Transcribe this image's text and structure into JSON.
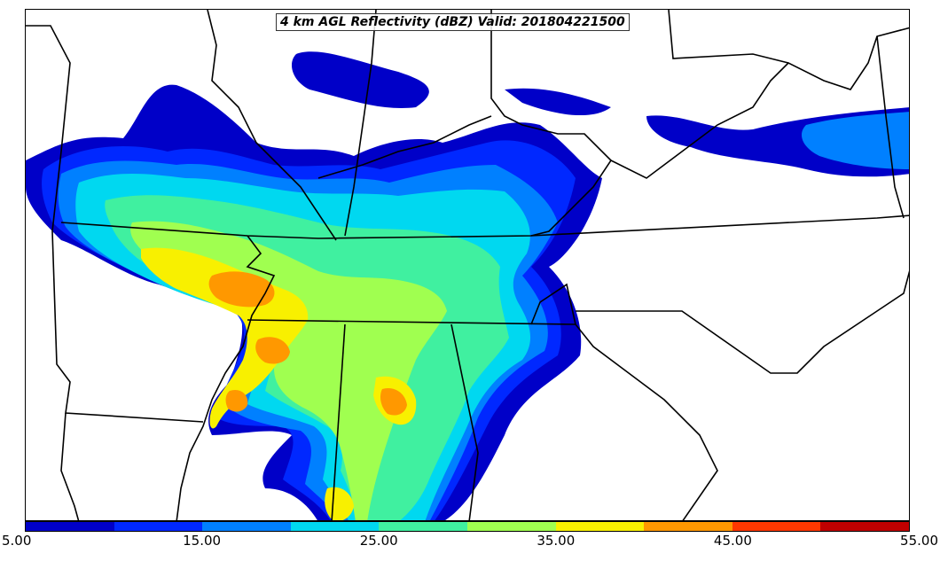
{
  "map": {
    "title": "4 km AGL Reflectivity (dBZ) Valid: 201804221500"
  },
  "colorbar": {
    "bins": [
      {
        "min": 5,
        "max": 10,
        "color": "#0000c8"
      },
      {
        "min": 10,
        "max": 15,
        "color": "#0028ff"
      },
      {
        "min": 15,
        "max": 20,
        "color": "#0080ff"
      },
      {
        "min": 20,
        "max": 25,
        "color": "#00d8f0"
      },
      {
        "min": 25,
        "max": 30,
        "color": "#40f0a0"
      },
      {
        "min": 30,
        "max": 35,
        "color": "#a0ff50"
      },
      {
        "min": 35,
        "max": 40,
        "color": "#f8f000"
      },
      {
        "min": 40,
        "max": 45,
        "color": "#ff9800"
      },
      {
        "min": 45,
        "max": 50,
        "color": "#ff3800"
      },
      {
        "min": 50,
        "max": 55,
        "color": "#c00000"
      }
    ],
    "tick_labels": [
      "5.00",
      "15.00",
      "25.00",
      "35.00",
      "45.00",
      "55.00"
    ]
  }
}
